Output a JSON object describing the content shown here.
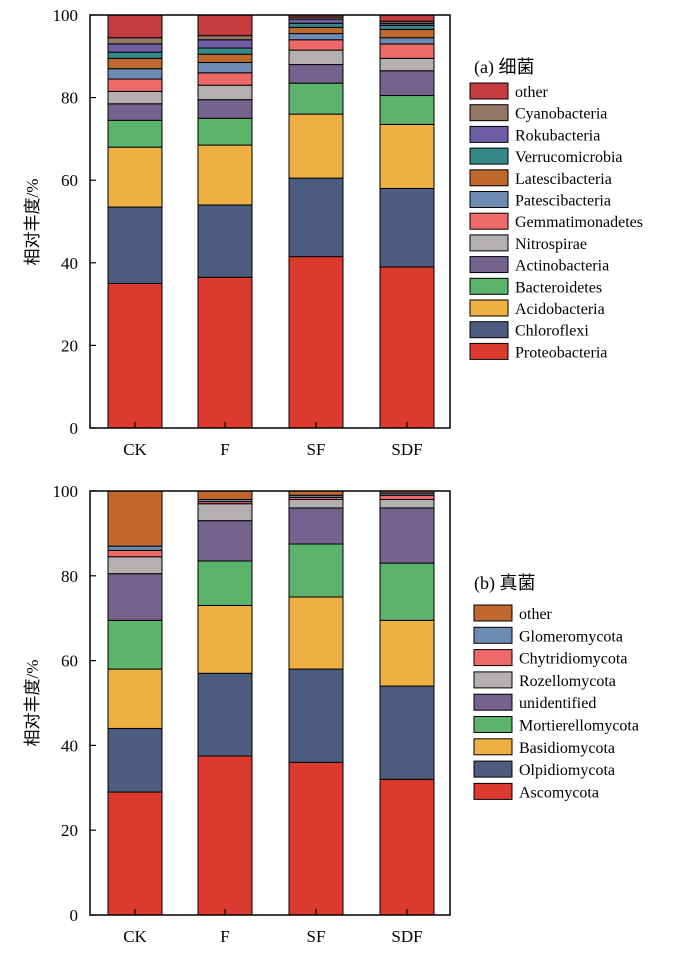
{
  "chart_data": [
    {
      "type": "bar",
      "stacked": true,
      "title": "(a) 细菌",
      "xlabel": "",
      "ylabel": "相对丰度/%",
      "ylim": [
        0,
        100
      ],
      "yticks": [
        0,
        20,
        40,
        60,
        80,
        100
      ],
      "categories": [
        "CK",
        "F",
        "SF",
        "SDF"
      ],
      "series": [
        {
          "name": "Proteobacteria",
          "color": "#dc3a2f",
          "values": [
            35.0,
            36.5,
            41.5,
            39.0
          ]
        },
        {
          "name": "Chloroflexi",
          "color": "#4d5d80",
          "values": [
            18.5,
            17.5,
            19.0,
            19.0
          ]
        },
        {
          "name": "Acidobacteria",
          "color": "#efb043",
          "values": [
            14.5,
            14.5,
            15.5,
            15.5
          ]
        },
        {
          "name": "Bacteroidetes",
          "color": "#5cb36c",
          "values": [
            6.5,
            6.5,
            7.5,
            7.0
          ]
        },
        {
          "name": "Actinobacteria",
          "color": "#75628f",
          "values": [
            4.0,
            4.5,
            4.5,
            6.0
          ]
        },
        {
          "name": "Nitrospirae",
          "color": "#b4b0af",
          "values": [
            3.0,
            3.5,
            3.5,
            3.0
          ]
        },
        {
          "name": "Gemmatimonadetes",
          "color": "#ee6a68",
          "values": [
            3.0,
            3.0,
            2.5,
            3.5
          ]
        },
        {
          "name": "Patescibacteria",
          "color": "#6e8bb4",
          "values": [
            2.5,
            2.5,
            1.5,
            1.5
          ]
        },
        {
          "name": "Latescibacteria",
          "color": "#c0682e",
          "values": [
            2.5,
            2.0,
            1.5,
            2.0
          ]
        },
        {
          "name": "Verrucomicrobia",
          "color": "#358986",
          "values": [
            1.5,
            1.5,
            1.0,
            1.0
          ]
        },
        {
          "name": "Rokubacteria",
          "color": "#6e5ea6",
          "values": [
            2.0,
            2.0,
            1.0,
            0.5
          ]
        },
        {
          "name": "Cyanobacteria",
          "color": "#957766",
          "values": [
            1.5,
            1.0,
            0.5,
            0.5
          ]
        },
        {
          "name": "other",
          "color": "#c43c3f",
          "values": [
            5.5,
            5.0,
            0.5,
            1.5
          ]
        }
      ]
    },
    {
      "type": "bar",
      "stacked": true,
      "title": "(b) 真菌",
      "xlabel": "",
      "ylabel": "相对丰度/%",
      "ylim": [
        0,
        100
      ],
      "yticks": [
        0,
        20,
        40,
        60,
        80,
        100
      ],
      "categories": [
        "CK",
        "F",
        "SF",
        "SDF"
      ],
      "series": [
        {
          "name": "Ascomycota",
          "color": "#dc3a2f",
          "values": [
            29.0,
            37.5,
            36.0,
            32.0
          ]
        },
        {
          "name": "Olpidiomycota",
          "color": "#4d5d80",
          "values": [
            15.0,
            19.5,
            22.0,
            22.0
          ]
        },
        {
          "name": "Basidiomycota",
          "color": "#efb043",
          "values": [
            14.0,
            16.0,
            17.0,
            15.5
          ]
        },
        {
          "name": "Mortierellomycota",
          "color": "#5cb36c",
          "values": [
            11.5,
            10.5,
            12.5,
            13.5
          ]
        },
        {
          "name": "unidentified",
          "color": "#75628f",
          "values": [
            11.0,
            9.5,
            8.5,
            13.0
          ]
        },
        {
          "name": "Rozellomycota",
          "color": "#b4b0af",
          "values": [
            4.0,
            4.0,
            2.0,
            2.0
          ]
        },
        {
          "name": "Chytridiomycota",
          "color": "#ee6a68",
          "values": [
            1.5,
            0.5,
            0.5,
            1.0
          ]
        },
        {
          "name": "Glomeromycota",
          "color": "#6e8bb4",
          "values": [
            1.0,
            0.5,
            0.5,
            0.5
          ]
        },
        {
          "name": "other",
          "color": "#c0682e",
          "values": [
            13.0,
            2.0,
            1.0,
            0.5
          ]
        }
      ]
    }
  ]
}
